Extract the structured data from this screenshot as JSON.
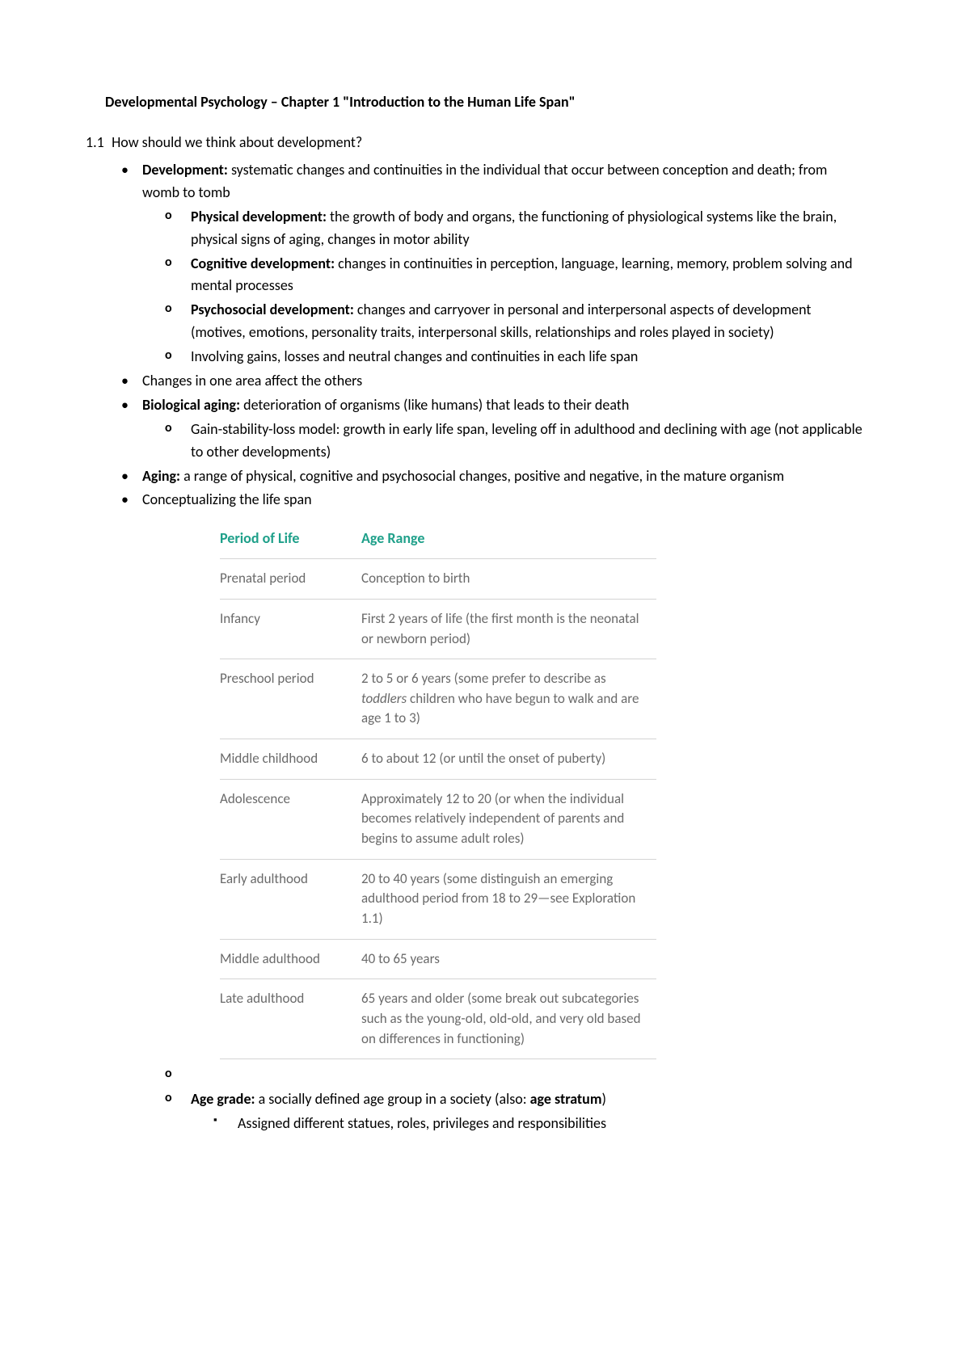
{
  "title": "Developmental Psychology – Chapter 1 \"Introduction to the Human Life Span\"",
  "section": {
    "num": "1.1",
    "heading": "How should we think about development?"
  },
  "bullets": {
    "development_term": "Development:",
    "development_text": " systematic changes and continuities in the individual that occur between conception and death; from womb to tomb",
    "physical_term": "Physical development:",
    "physical_text": " the growth of body and organs, the functioning of physiological systems like the brain, physical signs of aging, changes in motor ability",
    "cognitive_term": "Cognitive development:",
    "cognitive_text": " changes in continuities in perception, language, learning, memory, problem solving and mental processes",
    "psychosocial_term": "Psychosocial development:",
    "psychosocial_text": " changes and carryover in personal and interpersonal aspects of development (motives, emotions, personality traits, interpersonal skills, relationships and roles played in society)",
    "involving": "Involving gains, losses and neutral changes and continuities in each life span",
    "changes_affect": "Changes in one area affect the others",
    "bio_aging_term": "Biological aging:",
    "bio_aging_text": " deterioration of organisms (like humans) that leads to their death",
    "gain_model": "Gain-stability-loss model: growth in early life span, leveling off in adulthood and declining with age (not applicable to other developments)",
    "aging_term": "Aging:",
    "aging_text": " a range of physical, cognitive and psychosocial changes, positive and negative, in the mature organism",
    "conceptualizing": "Conceptualizing the life span",
    "age_grade_term": "Age grade:",
    "age_grade_text": " a socially defined age group in a society (also: ",
    "age_stratum": "age stratum",
    "age_grade_close": ")",
    "assigned": "Assigned different statues, roles, privileges and responsibilities"
  },
  "table": {
    "headers": {
      "period": "Period of Life",
      "range": "Age Range"
    },
    "header_color": "#1fa08a",
    "text_color": "#6a6a6a",
    "border_color": "#d4d4d4",
    "rows": [
      {
        "period": "Prenatal period",
        "range_a": "Conception to birth"
      },
      {
        "period": "Infancy",
        "range_a": "First 2 years of life (the first month is the neonatal or newborn period)"
      },
      {
        "period": "Preschool period",
        "range_a": "2 to 5 or 6 years (some prefer to describe as ",
        "range_i": "toddlers",
        "range_b": " children who have begun to walk and are age 1 to 3)"
      },
      {
        "period": "Middle childhood",
        "range_a": "6 to about 12 (or until the onset of puberty)"
      },
      {
        "period": "Adolescence",
        "range_a": "Approximately 12 to 20 (or when the individual becomes relatively independent of parents and begins to assume adult roles)"
      },
      {
        "period": "Early adulthood",
        "range_a": "20 to 40 years (some distinguish an emerging adulthood period from 18 to 29—see Exploration 1.1)"
      },
      {
        "period": "Middle adulthood",
        "range_a": "40 to 65 years"
      },
      {
        "period": "Late adulthood",
        "range_a": "65 years and older (some break out subcategories such as the young-old, old-old, and very old based on differences in functioning)"
      }
    ]
  }
}
